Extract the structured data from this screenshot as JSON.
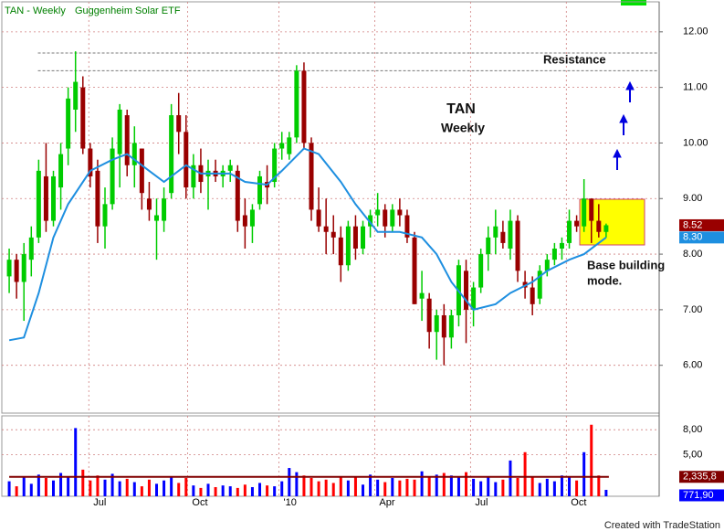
{
  "chart_data": {
    "type": "candlestick",
    "title": "TAN - Weekly",
    "subtitle": "Guggenheim Solar ETF",
    "up_color": "#00cc00",
    "down_color": "#990000",
    "xlim": [
      -1,
      88.2
    ],
    "xticks": [
      {
        "value": 10.8,
        "label": "Jul"
      },
      {
        "value": 24.2,
        "label": "Oct"
      },
      {
        "value": 36.6,
        "label": "'10"
      },
      {
        "value": 49.6,
        "label": "Apr"
      },
      {
        "value": 62.6,
        "label": "Jul"
      },
      {
        "value": 75.6,
        "label": "Oct"
      }
    ],
    "ylim": [
      5.14,
      12.54
    ],
    "yticks": [
      {
        "value": 12,
        "label": "12.00"
      },
      {
        "value": 11,
        "label": "11.00"
      },
      {
        "value": 10,
        "label": "10.00"
      },
      {
        "value": 9,
        "label": "9.00"
      },
      {
        "value": 8,
        "label": "8.00"
      },
      {
        "value": 7,
        "label": "7.00"
      },
      {
        "value": 6,
        "label": "6.00"
      }
    ],
    "grid": true,
    "open": [
      7.6,
      7.9,
      7.5,
      7.9,
      8.3,
      9.4,
      8.6,
      9.2,
      9.9,
      10.6,
      11.0,
      9.9,
      9.5,
      8.5,
      8.9,
      9.8,
      10.5,
      9.6,
      9.9,
      9.0,
      8.6,
      8.6,
      9.1,
      10.5,
      10.2,
      9.2,
      9.6,
      9.4,
      9.5,
      9.4,
      9.5,
      9.5,
      8.7,
      8.5,
      8.9,
      9.3,
      9.3,
      9.9,
      9.8,
      10.1,
      11.3,
      10.0,
      8.8,
      8.5,
      8.4,
      8.3,
      7.8,
      8.5,
      8.1,
      8.5,
      8.7,
      8.8,
      8.5,
      8.8,
      8.7,
      8.3,
      7.2,
      7.2,
      6.6,
      6.9,
      6.5,
      6.9,
      7.7,
      7.0,
      7.4,
      8.0,
      8.3,
      8.4,
      8.1,
      8.6,
      7.5,
      7.4,
      7.2,
      7.7,
      7.9,
      8.1,
      8.2,
      8.6,
      8.5,
      9.0,
      8.6,
      8.4
    ],
    "high": [
      8.1,
      8.0,
      8.2,
      8.5,
      9.7,
      10.0,
      9.5,
      10.0,
      11.0,
      11.65,
      11.2,
      10.0,
      9.7,
      9.2,
      10.1,
      10.7,
      10.6,
      10.3,
      9.9,
      9.3,
      9.0,
      9.2,
      10.7,
      10.9,
      10.5,
      9.8,
      9.9,
      9.7,
      9.7,
      9.6,
      9.7,
      9.6,
      9.0,
      8.9,
      9.5,
      9.6,
      10.0,
      10.2,
      10.2,
      11.4,
      11.45,
      10.1,
      9.2,
      9.0,
      8.7,
      8.5,
      8.6,
      8.7,
      8.6,
      8.8,
      9.1,
      8.9,
      8.9,
      9.0,
      8.8,
      8.4,
      7.7,
      7.3,
      7.0,
      7.1,
      7.0,
      7.9,
      7.9,
      7.5,
      8.1,
      8.5,
      8.8,
      8.6,
      8.8,
      8.7,
      7.7,
      7.6,
      7.8,
      8.0,
      8.2,
      8.3,
      8.8,
      8.7,
      9.35,
      9.0,
      8.9,
      8.55
    ],
    "low": [
      7.3,
      7.2,
      6.8,
      7.6,
      8.2,
      8.4,
      8.5,
      8.8,
      9.6,
      10.2,
      9.8,
      9.2,
      8.2,
      8.1,
      8.8,
      9.2,
      9.4,
      9.2,
      8.8,
      8.6,
      7.9,
      8.4,
      9.0,
      9.8,
      9.0,
      9.0,
      9.1,
      8.8,
      9.3,
      9.2,
      9.3,
      8.4,
      8.1,
      8.2,
      8.8,
      8.9,
      9.2,
      9.7,
      9.7,
      10.0,
      9.9,
      8.6,
      8.4,
      8.0,
      8.0,
      7.5,
      7.7,
      7.9,
      8.0,
      8.3,
      8.5,
      8.3,
      8.4,
      8.5,
      8.2,
      7.1,
      6.8,
      6.3,
      6.1,
      6.0,
      6.3,
      6.7,
      6.4,
      6.7,
      7.3,
      7.7,
      8.0,
      8.1,
      7.9,
      7.5,
      7.2,
      6.9,
      7.1,
      7.6,
      7.8,
      7.9,
      8.1,
      8.4,
      8.4,
      8.2,
      8.3,
      8.3
    ],
    "close": [
      7.9,
      7.5,
      8.0,
      8.3,
      9.5,
      8.6,
      9.4,
      9.8,
      10.8,
      11.1,
      9.9,
      9.4,
      8.5,
      8.9,
      9.9,
      10.6,
      9.6,
      10.0,
      9.1,
      8.8,
      8.7,
      9.0,
      10.5,
      10.2,
      9.2,
      9.6,
      9.3,
      9.5,
      9.4,
      9.5,
      9.6,
      8.6,
      8.5,
      8.8,
      9.4,
      9.2,
      9.9,
      10.0,
      10.1,
      11.3,
      10.0,
      8.8,
      8.5,
      8.4,
      8.3,
      7.8,
      8.5,
      8.1,
      8.5,
      8.7,
      8.8,
      8.5,
      8.8,
      8.7,
      8.3,
      7.1,
      7.3,
      6.6,
      6.9,
      6.5,
      6.9,
      7.8,
      7.0,
      7.4,
      8.0,
      8.3,
      8.5,
      8.2,
      8.6,
      7.7,
      7.4,
      7.1,
      7.7,
      7.9,
      8.1,
      8.2,
      8.6,
      8.5,
      9.0,
      8.6,
      8.4,
      8.52
    ],
    "ma": {
      "color": "#1e8fe0",
      "x": [
        0,
        2,
        4,
        6,
        8,
        11,
        14,
        16,
        19,
        21,
        24,
        26,
        30,
        32,
        35,
        37,
        40,
        42,
        45,
        47,
        50,
        53,
        56,
        58,
        60,
        63,
        66,
        68,
        71,
        73,
        76,
        78,
        81
      ],
      "values": [
        6.45,
        6.5,
        7.3,
        8.3,
        8.9,
        9.5,
        9.7,
        9.8,
        9.5,
        9.3,
        9.6,
        9.45,
        9.45,
        9.3,
        9.25,
        9.5,
        9.9,
        9.8,
        9.3,
        8.9,
        8.4,
        8.4,
        8.3,
        8.0,
        7.5,
        7.0,
        7.1,
        7.3,
        7.5,
        7.7,
        7.9,
        8.0,
        8.3
      ]
    },
    "last_price": 8.52,
    "ma_last": {
      "value": 8.3,
      "label": "8.30"
    },
    "resistance_levels": [
      11.62,
      11.3
    ],
    "annotations": {
      "symbol": "TAN",
      "period": "Weekly",
      "resistance": "Resistance",
      "base_line1": "Base building",
      "base_line2": "mode."
    },
    "volume": {
      "up_color": "#0000ff",
      "down_color": "#ff0000",
      "avg_color": "#800000",
      "ylim": [
        0,
        9670000
      ],
      "yticks": [
        {
          "value": 8000000,
          "label": "8,00"
        },
        {
          "value": 5000000,
          "label": "5,00"
        }
      ],
      "values": [
        1800000,
        1200000,
        2400000,
        1500000,
        2600000,
        2200000,
        1900000,
        2800000,
        2300000,
        8200000,
        3200000,
        1900000,
        2500000,
        2000000,
        2700000,
        1800000,
        2100000,
        1700000,
        1200000,
        2000000,
        1500000,
        1900000,
        2400000,
        1600000,
        2200000,
        1300000,
        1000000,
        1500000,
        1100000,
        1300000,
        1200000,
        1000000,
        1400000,
        1100000,
        1600000,
        1300000,
        1200000,
        1800000,
        3400000,
        2900000,
        2500000,
        2200000,
        1800000,
        2000000,
        1600000,
        2400000,
        1900000,
        2300000,
        1400000,
        2600000,
        2000000,
        1700000,
        2200000,
        1900000,
        2100000,
        2000000,
        3000000,
        2400000,
        2600000,
        2800000,
        2500000,
        2300000,
        2900000,
        2100000,
        1800000,
        2400000,
        1700000,
        2000000,
        4300000,
        2200000,
        5300000,
        2400000,
        1600000,
        2100000,
        1800000,
        2500000,
        2300000,
        1900000,
        5300000,
        8600000,
        2500000,
        771900
      ],
      "avg": {
        "value": 2335800,
        "label": "2,335,8"
      },
      "last": {
        "value": 771900,
        "label": "771,90"
      }
    },
    "footer": "Created with TradeStation"
  }
}
